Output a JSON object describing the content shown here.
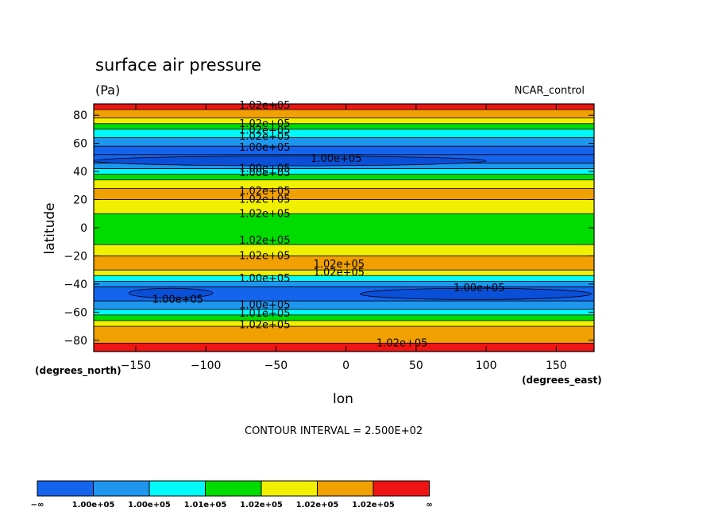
{
  "chart_data": {
    "type": "filled_contour",
    "title": "surface air pressure",
    "units": "(Pa)",
    "dataset": "NCAR_control",
    "xlabel": "lon",
    "ylabel": "latitude",
    "x_units": "(degrees_east)",
    "y_units": "(degrees_north)",
    "xlim": [
      -180,
      177
    ],
    "ylim": [
      -88,
      88
    ],
    "x_ticks": [
      -150,
      -100,
      -50,
      0,
      50,
      100,
      150
    ],
    "x_tick_labels": [
      "−150",
      "−100",
      "−50",
      "0",
      "50",
      "100",
      "150"
    ],
    "y_ticks": [
      80,
      60,
      40,
      20,
      0,
      -20,
      -40,
      -60,
      -80
    ],
    "y_tick_labels": [
      "80",
      "60",
      "40",
      "20",
      "0",
      "−20",
      "−40",
      "−60",
      "−80"
    ],
    "contour_interval_text": "CONTOUR INTERVAL = 2.500E+02",
    "zonal_bands": [
      {
        "lat": [
          84,
          88
        ],
        "level": 6
      },
      {
        "lat": [
          78,
          84
        ],
        "level": 5
      },
      {
        "lat": [
          74,
          78
        ],
        "level": 4
      },
      {
        "lat": [
          70,
          74
        ],
        "level": 3
      },
      {
        "lat": [
          64,
          70
        ],
        "level": 2
      },
      {
        "lat": [
          58,
          64
        ],
        "level": 1
      },
      {
        "lat": [
          52,
          58
        ],
        "level": 0
      },
      {
        "lat": [
          46,
          52
        ],
        "level": 0
      },
      {
        "lat": [
          42,
          46
        ],
        "level": 1
      },
      {
        "lat": [
          38,
          42
        ],
        "level": 2
      },
      {
        "lat": [
          34,
          38
        ],
        "level": 3
      },
      {
        "lat": [
          28,
          34
        ],
        "level": 4
      },
      {
        "lat": [
          20,
          28
        ],
        "level": 5
      },
      {
        "lat": [
          10,
          20
        ],
        "level": 4
      },
      {
        "lat": [
          -12,
          10
        ],
        "level": 3
      },
      {
        "lat": [
          -20,
          -12
        ],
        "level": 4
      },
      {
        "lat": [
          -30,
          -20
        ],
        "level": 5
      },
      {
        "lat": [
          -34,
          -30
        ],
        "level": 4
      },
      {
        "lat": [
          -38,
          -34
        ],
        "level": 2
      },
      {
        "lat": [
          -42,
          -38
        ],
        "level": 1
      },
      {
        "lat": [
          -52,
          -42
        ],
        "level": 0
      },
      {
        "lat": [
          -58,
          -52
        ],
        "level": 1
      },
      {
        "lat": [
          -62,
          -58
        ],
        "level": 2
      },
      {
        "lat": [
          -66,
          -62
        ],
        "level": 3
      },
      {
        "lat": [
          -70,
          -66
        ],
        "level": 4
      },
      {
        "lat": [
          -82,
          -70
        ],
        "level": 5
      },
      {
        "lat": [
          -88,
          -82
        ],
        "level": 6
      }
    ],
    "low_cells": [
      {
        "lon": [
          -180,
          100
        ],
        "lat": [
          44,
          51
        ],
        "level": -1
      },
      {
        "lon": [
          -155,
          -95
        ],
        "lat": [
          -50,
          -43
        ],
        "level": -1
      },
      {
        "lon": [
          10,
          175
        ],
        "lat": [
          -51,
          -43
        ],
        "level": -1
      }
    ],
    "contour_labels": [
      {
        "text": "1.02e+05",
        "lon": -58,
        "lat": 87
      },
      {
        "text": "1.02e+05",
        "lon": -58,
        "lat": 74
      },
      {
        "text": "1.02e+05",
        "lon": -58,
        "lat": 69
      },
      {
        "text": "1.02e+05",
        "lon": -58,
        "lat": 65
      },
      {
        "text": "1.00e+05",
        "lon": -58,
        "lat": 57
      },
      {
        "text": "1.00e+05",
        "lon": -7,
        "lat": 49
      },
      {
        "text": "1.00e+05",
        "lon": -58,
        "lat": 42
      },
      {
        "text": "1.00e+05",
        "lon": -58,
        "lat": 39
      },
      {
        "text": "1.02e+05",
        "lon": -58,
        "lat": 26
      },
      {
        "text": "1.02e+05",
        "lon": -58,
        "lat": 20
      },
      {
        "text": "1.02e+05",
        "lon": -58,
        "lat": 10
      },
      {
        "text": "1.02e+05",
        "lon": -58,
        "lat": -9
      },
      {
        "text": "1.02e+05",
        "lon": -58,
        "lat": -20
      },
      {
        "text": "1.02e+05",
        "lon": -5,
        "lat": -26
      },
      {
        "text": "1.02e+05",
        "lon": -5,
        "lat": -32
      },
      {
        "text": "1.00e+05",
        "lon": -58,
        "lat": -36
      },
      {
        "text": "1.00e+05",
        "lon": 95,
        "lat": -43
      },
      {
        "text": "1.00e+05",
        "lon": -120,
        "lat": -51
      },
      {
        "text": "1.00e+05",
        "lon": -58,
        "lat": -55
      },
      {
        "text": "1.01e+05",
        "lon": -58,
        "lat": -61
      },
      {
        "text": "1.02e+05",
        "lon": -58,
        "lat": -69
      },
      {
        "text": "1.02e+05",
        "lon": 40,
        "lat": -82
      }
    ],
    "colorbar": {
      "colors": [
        "#1464ee",
        "#1e96ee",
        "#00fafa",
        "#00dc00",
        "#f0f000",
        "#f0a000",
        "#f01414"
      ],
      "labels": [
        "−∞",
        "1.00e+05",
        "1.00e+05",
        "1.01e+05",
        "1.02e+05",
        "1.02e+05",
        "1.02e+05",
        "∞"
      ]
    }
  }
}
